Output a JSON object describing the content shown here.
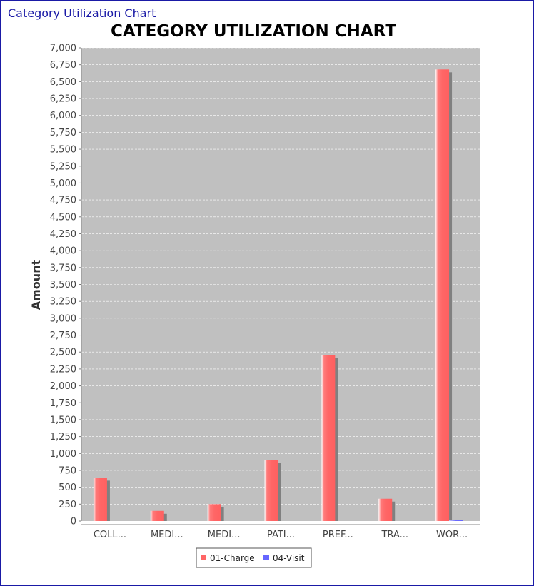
{
  "window": {
    "title": "Category Utilization Chart"
  },
  "colors": {
    "window_border": "#1a1aa6",
    "plot_bg": "#c0c0c0",
    "gridline": "#ffffff",
    "charge": "#ff6666",
    "visit": "#6666ff",
    "shadow": "#808080"
  },
  "chart_data": {
    "type": "bar",
    "title": "CATEGORY UTILIZATION CHART",
    "xlabel": "",
    "ylabel": "Amount",
    "categories": [
      "COLL...",
      "MEDI...",
      "MEDI...",
      "PATI...",
      "PREF...",
      "TRA...",
      "WOR..."
    ],
    "series": [
      {
        "name": "01-Charge",
        "color": "#ff6666",
        "values": [
          640,
          150,
          250,
          900,
          2450,
          330,
          6680
        ]
      },
      {
        "name": "04-Visit",
        "color": "#6666ff",
        "values": [
          0,
          0,
          0,
          0,
          0,
          0,
          10
        ]
      }
    ],
    "ylim": [
      0,
      7000
    ],
    "y_ticks": [
      "0",
      "250",
      "500",
      "750",
      "1,000",
      "1,250",
      "1,500",
      "1,750",
      "2,000",
      "2,250",
      "2,500",
      "2,750",
      "3,000",
      "3,250",
      "3,500",
      "3,750",
      "4,000",
      "4,250",
      "4,500",
      "4,750",
      "5,000",
      "5,250",
      "5,500",
      "5,750",
      "6,000",
      "6,250",
      "6,500",
      "6,750",
      "7,000"
    ],
    "grid": true,
    "legend_position": "bottom"
  }
}
